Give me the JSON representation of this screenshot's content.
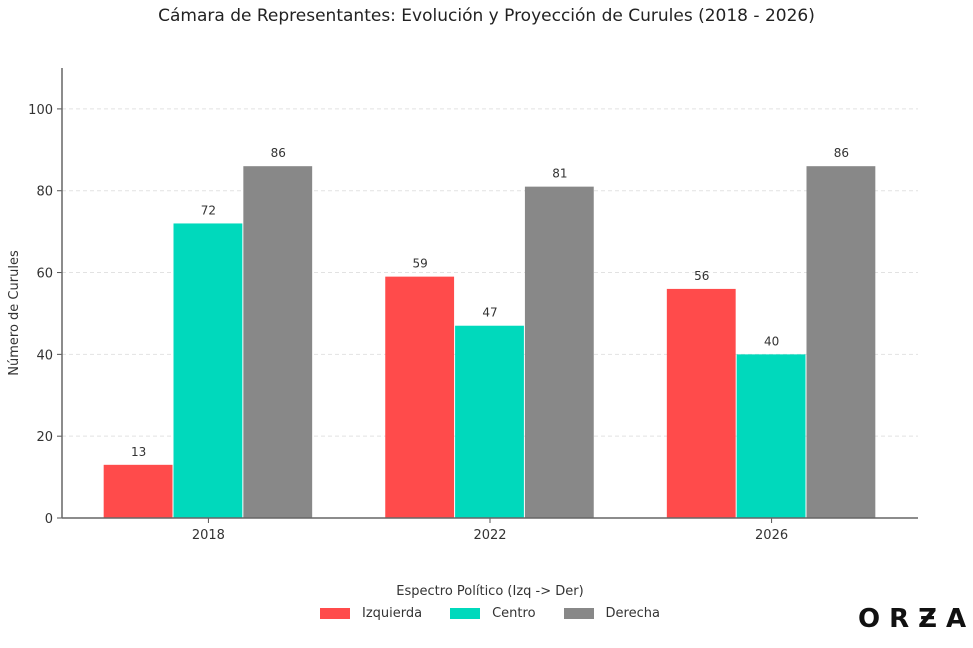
{
  "chart_data": {
    "type": "bar",
    "title": "Cámara de Representantes: Evolución y Proyección de Curules (2018 - 2026)",
    "xlabel": "",
    "ylabel": "Número de Curules",
    "categories": [
      "2018",
      "2022",
      "2026"
    ],
    "series": [
      {
        "name": "Izquierda",
        "values": [
          13,
          59,
          56
        ],
        "color": "#FF4B4B"
      },
      {
        "name": "Centro",
        "values": [
          72,
          47,
          40
        ],
        "color": "#00D9BC"
      },
      {
        "name": "Derecha",
        "values": [
          86,
          81,
          86
        ],
        "color": "#888888"
      }
    ],
    "ylim": [
      0,
      110
    ],
    "yticks": [
      0,
      20,
      40,
      60,
      80,
      100
    ],
    "grid": "horizontal dashed",
    "legend_title": "Espectro Político (Izq -> Der)",
    "legend_placement": "bottom-center"
  },
  "brand": {
    "logo_text": "ORZA"
  }
}
